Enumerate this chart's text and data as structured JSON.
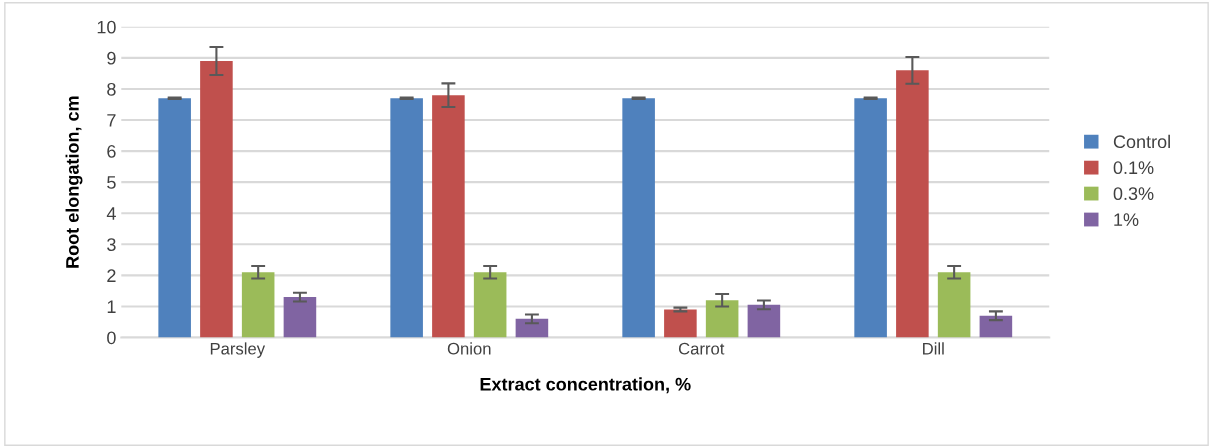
{
  "chart_data": {
    "type": "bar",
    "xlabel": "Extract concentration, %",
    "ylabel": "Root elongation, cm",
    "categories": [
      "Parsley",
      "Onion",
      "Carrot",
      "Dill"
    ],
    "series": [
      {
        "name": "Control",
        "color": "#4f81bd",
        "values": [
          7.7,
          7.7,
          7.7,
          7.7
        ],
        "errors": [
          0.02,
          0.02,
          0.02,
          0.02
        ]
      },
      {
        "name": "0.1%",
        "color": "#c0504d",
        "values": [
          8.9,
          7.8,
          0.9,
          8.6
        ],
        "errors": [
          0.45,
          0.38,
          0.06,
          0.43
        ]
      },
      {
        "name": "0.3%",
        "color": "#9bbb59",
        "values": [
          2.1,
          2.1,
          1.2,
          2.1
        ],
        "errors": [
          0.2,
          0.2,
          0.2,
          0.2
        ]
      },
      {
        "name": "1%",
        "color": "#8064a2",
        "values": [
          1.3,
          0.6,
          1.05,
          0.7
        ],
        "errors": [
          0.14,
          0.14,
          0.14,
          0.14
        ]
      }
    ],
    "ylim": [
      0,
      10
    ],
    "yticks": [
      0,
      1,
      2,
      3,
      4,
      5,
      6,
      7,
      8,
      9,
      10
    ],
    "grid": "y",
    "legend": "right"
  }
}
